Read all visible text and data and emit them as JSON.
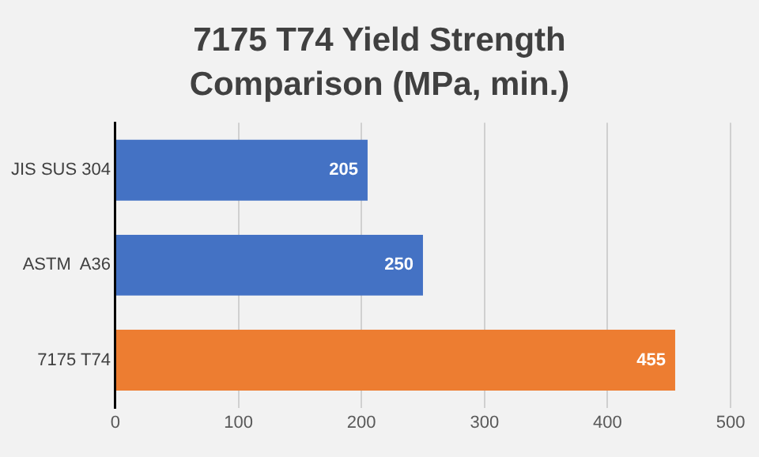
{
  "chart_data": {
    "type": "bar",
    "title": "7175 T74 Yield Strength Comparison (MPa, min.)",
    "orientation": "horizontal",
    "categories": [
      "JIS SUS 304",
      "ASTM  A36",
      "7175 T74"
    ],
    "values": [
      205,
      250,
      455
    ],
    "colors": [
      "#4472c4",
      "#4472c4",
      "#ed7d31"
    ],
    "xlim": [
      0,
      500
    ],
    "xticks": [
      0,
      100,
      200,
      300,
      400,
      500
    ],
    "grid": "x",
    "data_labels": true,
    "legend": false
  }
}
